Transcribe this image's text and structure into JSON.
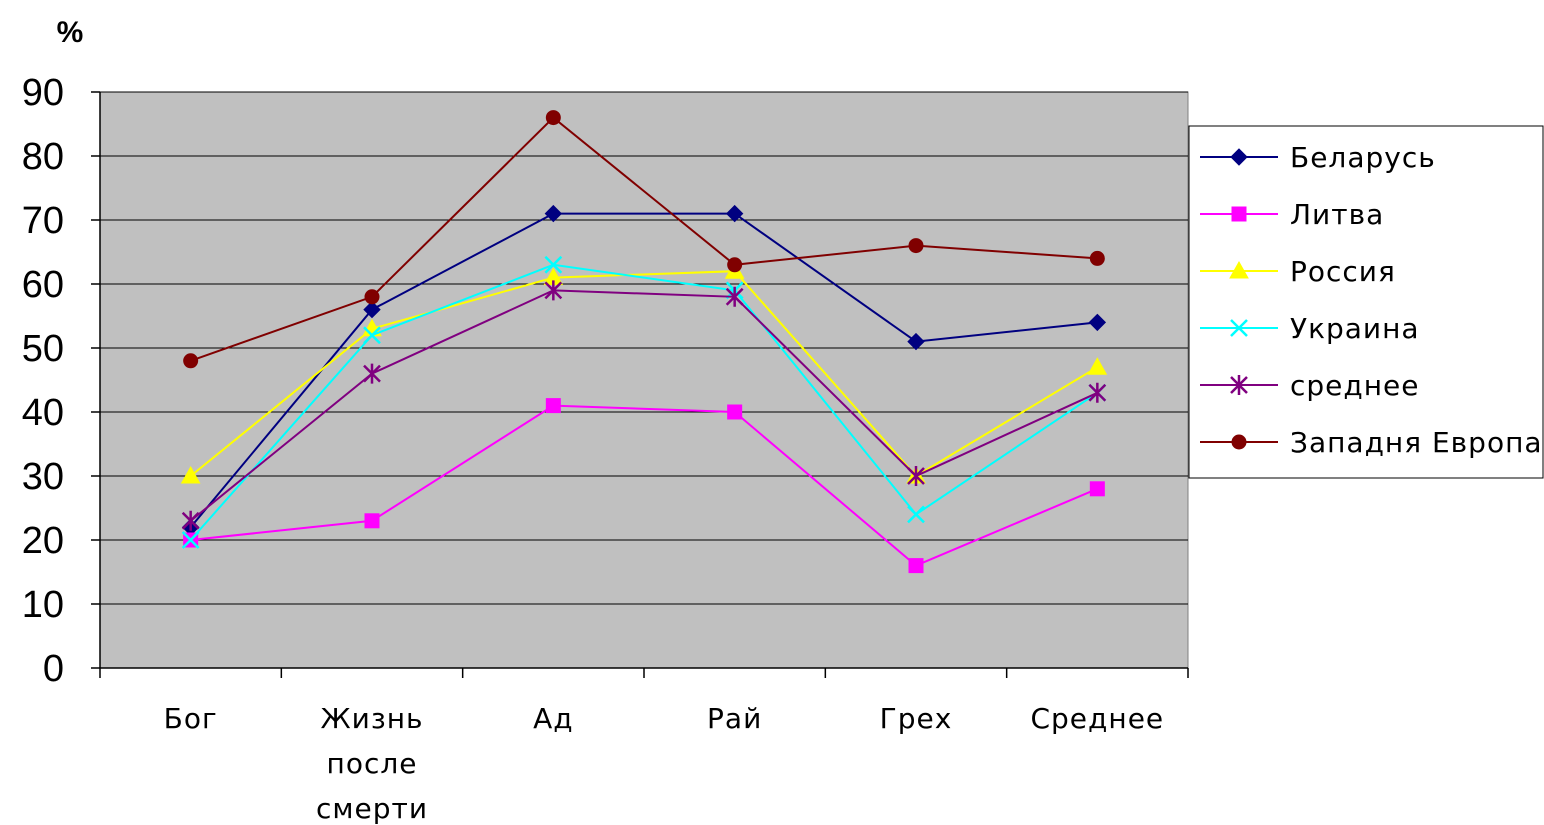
{
  "chart_data": {
    "type": "line",
    "y_unit_label": "%",
    "ylim": [
      0,
      90
    ],
    "y_ticks": [
      0,
      10,
      20,
      30,
      40,
      50,
      60,
      70,
      80,
      90
    ],
    "categories": [
      [
        "Бог"
      ],
      [
        "Жизнь",
        "после",
        "смерти"
      ],
      [
        "Ад"
      ],
      [
        "Рай"
      ],
      [
        "Грех"
      ],
      [
        "Среднее"
      ]
    ],
    "grid": true,
    "plot_background": "#c0c0c0",
    "legend_position": "right",
    "series": [
      {
        "name": "Беларусь",
        "color": "#000080",
        "marker": "diamond",
        "values": [
          22,
          56,
          71,
          71,
          51,
          54
        ]
      },
      {
        "name": "Литва",
        "color": "#ff00ff",
        "marker": "square",
        "values": [
          20,
          23,
          41,
          40,
          16,
          28
        ]
      },
      {
        "name": "Россия",
        "color": "#ffff00",
        "marker": "triangle",
        "values": [
          30,
          53,
          61,
          62,
          30,
          47
        ]
      },
      {
        "name": "Украина",
        "color": "#00ffff",
        "marker": "x",
        "values": [
          20,
          52,
          63,
          59,
          24,
          43
        ]
      },
      {
        "name": "среднее",
        "color": "#800080",
        "marker": "asterisk",
        "values": [
          23,
          46,
          59,
          58,
          30,
          43
        ]
      },
      {
        "name": "Западня Европа",
        "color": "#800000",
        "marker": "circle",
        "values": [
          48,
          58,
          86,
          63,
          66,
          64
        ]
      }
    ]
  }
}
